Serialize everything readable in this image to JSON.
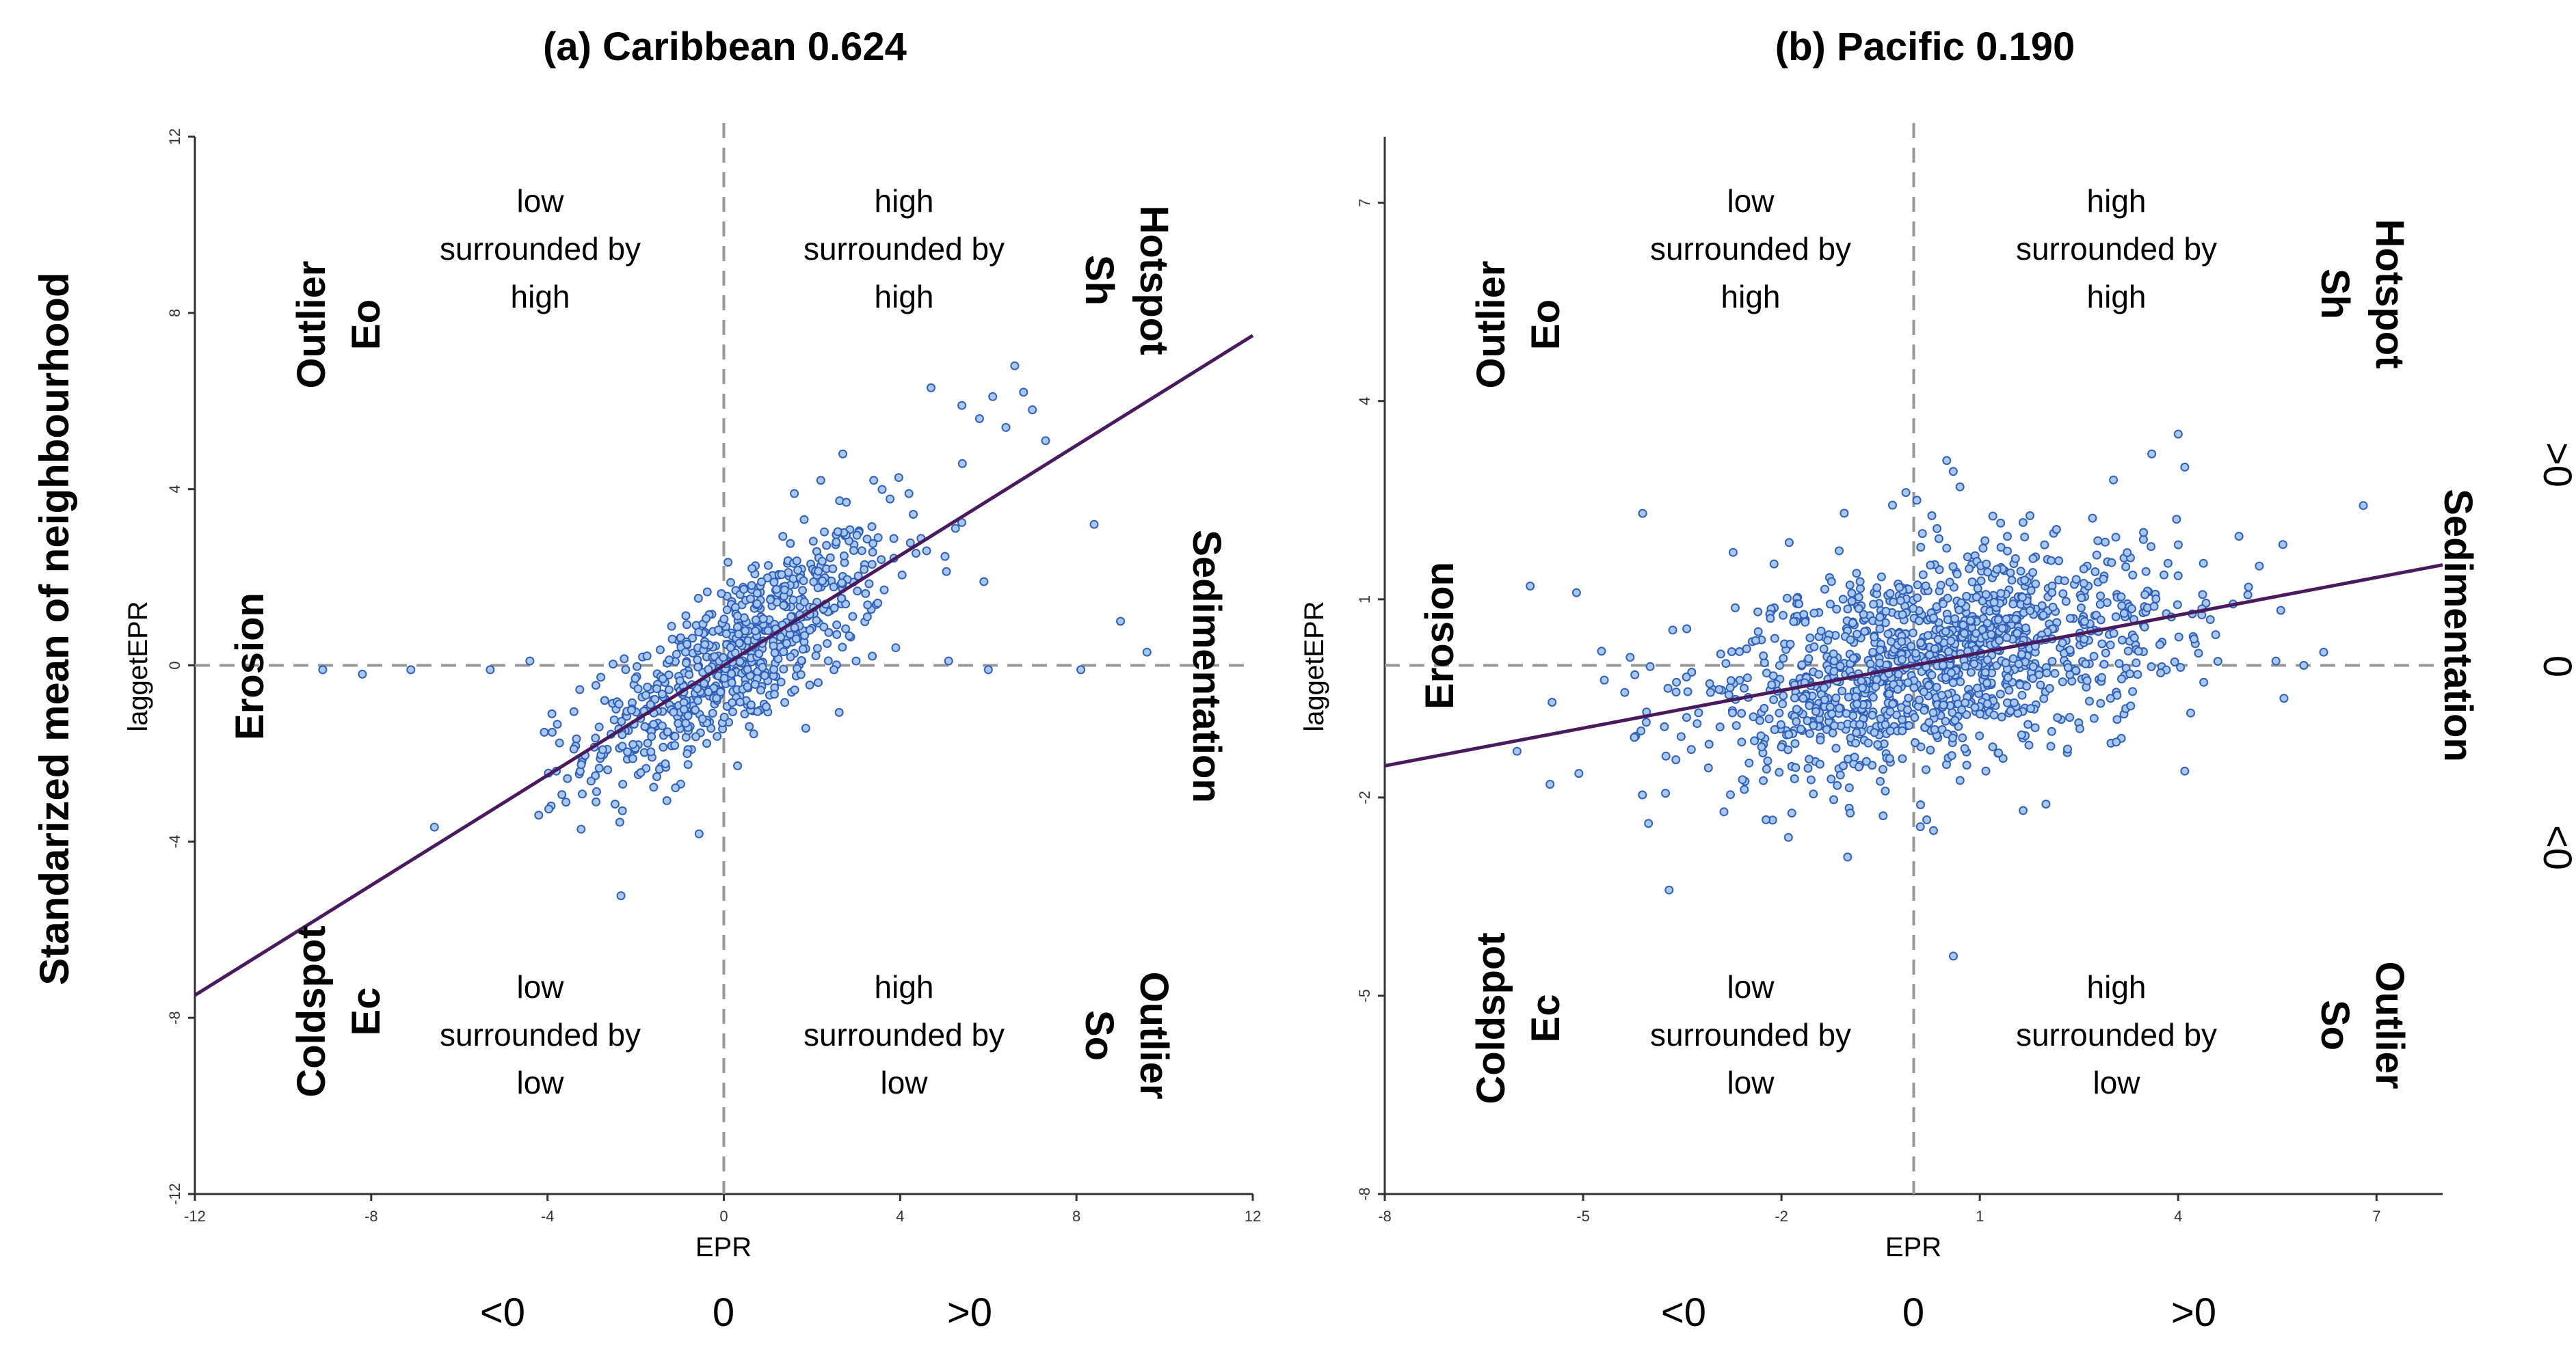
{
  "figure": {
    "y_big_label": "Standarized mean of neighbourhood",
    "right_labels": [
      ">0",
      "0",
      "<0"
    ]
  },
  "chart_data": [
    {
      "type": "scatter",
      "panel": "a",
      "title": "(a) Caribbean 0.624",
      "xlabel": "EPR",
      "ylabel": "laggetEPR",
      "xlim": [
        -12,
        12
      ],
      "ylim": [
        -12,
        12
      ],
      "x_ticks": [
        "-12",
        "-8",
        "-4",
        "0",
        "4",
        "8",
        "12"
      ],
      "x_tick_values": [
        -12,
        -8,
        -4,
        0,
        4,
        8,
        12
      ],
      "y_ticks": [
        "-12",
        "-8",
        "-4",
        "0",
        "4",
        "8",
        "12"
      ],
      "y_tick_values": [
        -12,
        -8,
        -4,
        0,
        4,
        8,
        12
      ],
      "regression": {
        "slope": 0.624,
        "intercept": 0
      },
      "bottom_labels": [
        "<0",
        "0",
        ">0"
      ],
      "side_labels": {
        "left": "Erosion",
        "right": "Sedimentation"
      },
      "quadrants": {
        "top_left": {
          "name": "Outlier",
          "code": "Eo",
          "desc": [
            "low",
            "surrounded by",
            "high"
          ]
        },
        "top_right": {
          "name": "Hotspot",
          "code": "Sh",
          "desc": [
            "high",
            "surrounded by",
            "high"
          ]
        },
        "bottom_left": {
          "name": "Coldspot",
          "code": "Ec",
          "desc": [
            "low",
            "surrounded by",
            "low"
          ]
        },
        "bottom_right": {
          "name": "Outlier",
          "code": "So",
          "desc": [
            "high",
            "surrounded by",
            "low"
          ]
        }
      },
      "points_estimated": {
        "n": 720,
        "x_mean": 0.3,
        "x_sd": 1.7,
        "noise_sd": 0.9,
        "extras": [
          [
            4.7,
            6.3
          ],
          [
            5.4,
            5.9
          ],
          [
            6.1,
            6.1
          ],
          [
            6.6,
            6.8
          ],
          [
            6.8,
            6.2
          ],
          [
            7.0,
            5.8
          ],
          [
            5.8,
            5.6
          ],
          [
            6.4,
            5.4
          ],
          [
            7.3,
            5.1
          ],
          [
            8.4,
            3.2
          ],
          [
            9.0,
            1.0
          ],
          [
            9.6,
            0.3
          ],
          [
            8.1,
            -0.1
          ],
          [
            6.0,
            -0.1
          ],
          [
            5.1,
            0.1
          ],
          [
            3.9,
            0.4
          ],
          [
            -5.3,
            -0.1
          ],
          [
            -7.1,
            -0.1
          ],
          [
            -8.2,
            -0.2
          ],
          [
            -9.1,
            -0.1
          ],
          [
            -3.8,
            -2.4
          ],
          [
            -4.2,
            -3.4
          ],
          [
            -2.9,
            -3.1
          ],
          [
            -2.3,
            -3.3
          ],
          [
            -4.4,
            0.1
          ],
          [
            -3.9,
            -1.1
          ],
          [
            -3.4,
            -1.9
          ],
          [
            2.7,
            4.8
          ],
          [
            3.4,
            4.2
          ],
          [
            2.2,
            4.2
          ],
          [
            1.6,
            3.9
          ],
          [
            4.2,
            3.9
          ],
          [
            2.5,
            -0.1
          ],
          [
            3.0,
            0.1
          ],
          [
            5.9,
            1.9
          ],
          [
            4.6,
            2.6
          ],
          [
            3.5,
            2.9
          ]
        ]
      }
    },
    {
      "type": "scatter",
      "panel": "b",
      "title": "(b) Pacific 0.190",
      "xlabel": "EPR",
      "ylabel": "laggetEPR",
      "xlim": [
        -8,
        8
      ],
      "ylim": [
        -8,
        8
      ],
      "x_ticks": [
        "-8",
        "-5",
        "-2",
        "1",
        "4",
        "7"
      ],
      "x_tick_values": [
        -8,
        -5,
        -2,
        1,
        4,
        7
      ],
      "y_ticks": [
        "-8",
        "-5",
        "-2",
        "1",
        "4",
        "7"
      ],
      "y_tick_values": [
        -8,
        -5,
        -2,
        1,
        4,
        7
      ],
      "regression": {
        "slope": 0.19,
        "intercept": 0
      },
      "bottom_labels": [
        "<0",
        "0",
        ">0"
      ],
      "side_labels": {
        "left": "Erosion",
        "right": "Sedimentation"
      },
      "quadrants": {
        "top_left": {
          "name": "Outlier",
          "code": "Eo",
          "desc": [
            "low",
            "surrounded by",
            "high"
          ]
        },
        "top_right": {
          "name": "Hotspot",
          "code": "Sh",
          "desc": [
            "high",
            "surrounded by",
            "high"
          ]
        },
        "bottom_left": {
          "name": "Coldspot",
          "code": "Ec",
          "desc": [
            "low",
            "surrounded by",
            "low"
          ]
        },
        "bottom_right": {
          "name": "Outlier",
          "code": "So",
          "desc": [
            "high",
            "surrounded by",
            "low"
          ]
        }
      },
      "points_estimated": {
        "n": 1300,
        "x_mean": 0.3,
        "x_sd": 1.8,
        "noise_sd": 0.8,
        "extras": [
          [
            -5.8,
            1.2
          ],
          [
            -4.1,
            2.3
          ],
          [
            -5.1,
            1.1
          ],
          [
            -3.7,
            -3.4
          ],
          [
            0.5,
            3.1
          ],
          [
            0.7,
            2.7
          ],
          [
            3.6,
            3.2
          ],
          [
            4.1,
            3.0
          ],
          [
            4.0,
            3.5
          ],
          [
            0.6,
            -4.4
          ],
          [
            0.3,
            -2.5
          ],
          [
            -1.0,
            -2.9
          ],
          [
            2.0,
            -2.1
          ],
          [
            4.1,
            -1.6
          ],
          [
            5.6,
            -0.5
          ],
          [
            6.2,
            0.2
          ],
          [
            5.9,
            0.0
          ],
          [
            -5.5,
            -1.8
          ],
          [
            -6.0,
            -1.3
          ]
        ]
      }
    }
  ]
}
